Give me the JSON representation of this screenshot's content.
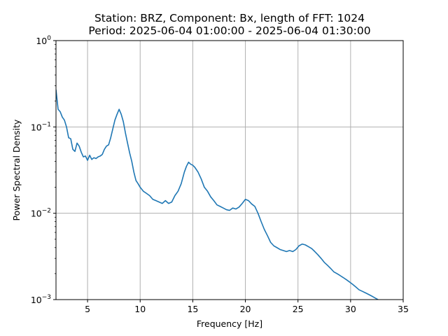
{
  "chart_data": {
    "type": "line",
    "title": "Station: BRZ, Component: Bx, length of FFT: 1024",
    "subtitle": "Period: 2025-06-04 01:00:00 - 2025-06-04 01:30:00",
    "xlabel": "Frequency [Hz]",
    "ylabel": "Power Spectral Density",
    "xlim": [
      2,
      35
    ],
    "ylim": [
      0.001,
      1
    ],
    "yscale": "log",
    "grid": true,
    "x_ticks": [
      5,
      10,
      15,
      20,
      25,
      30,
      35
    ],
    "x_tick_labels": [
      "5",
      "10",
      "15",
      "20",
      "25",
      "30",
      "35"
    ],
    "y_ticks": [
      {
        "value": 1,
        "base": "10",
        "exp": "0"
      },
      {
        "value": 0.1,
        "base": "10",
        "exp": "−1"
      },
      {
        "value": 0.01,
        "base": "10",
        "exp": "−2"
      },
      {
        "value": 0.001,
        "base": "10",
        "exp": "−3"
      }
    ],
    "series": [
      {
        "color": "#1f77b4",
        "x": [
          2.0,
          2.2,
          2.4,
          2.6,
          2.8,
          3.0,
          3.2,
          3.4,
          3.6,
          3.8,
          4.0,
          4.2,
          4.4,
          4.6,
          4.8,
          5.0,
          5.2,
          5.4,
          5.6,
          5.8,
          6.0,
          6.2,
          6.4,
          6.6,
          6.8,
          7.0,
          7.2,
          7.4,
          7.6,
          7.8,
          8.0,
          8.2,
          8.4,
          8.6,
          8.8,
          9.0,
          9.2,
          9.4,
          9.6,
          9.8,
          10.0,
          10.3,
          10.6,
          10.9,
          11.2,
          11.5,
          11.8,
          12.1,
          12.4,
          12.7,
          13.0,
          13.3,
          13.6,
          13.9,
          14.2,
          14.4,
          14.6,
          14.8,
          15.0,
          15.2,
          15.5,
          15.8,
          16.1,
          16.4,
          16.7,
          17.0,
          17.3,
          17.6,
          17.9,
          18.2,
          18.5,
          18.8,
          19.1,
          19.4,
          19.7,
          20.0,
          20.3,
          20.6,
          20.9,
          21.2,
          21.5,
          21.8,
          22.1,
          22.4,
          22.7,
          23.0,
          23.3,
          23.6,
          23.9,
          24.2,
          24.5,
          24.8,
          25.1,
          25.4,
          25.7,
          26.0,
          26.3,
          26.6,
          26.9,
          27.2,
          27.5,
          27.8,
          28.1,
          28.4,
          28.7,
          29.0,
          29.3,
          29.6,
          29.9,
          30.2,
          30.5,
          30.8,
          31.1,
          31.4,
          31.7,
          32.0,
          32.3,
          32.6,
          32.9,
          33.0
        ],
        "values": [
          0.27,
          0.16,
          0.15,
          0.13,
          0.12,
          0.1,
          0.075,
          0.073,
          0.055,
          0.052,
          0.065,
          0.06,
          0.051,
          0.045,
          0.046,
          0.041,
          0.047,
          0.042,
          0.044,
          0.043,
          0.045,
          0.046,
          0.048,
          0.055,
          0.06,
          0.062,
          0.075,
          0.095,
          0.12,
          0.14,
          0.16,
          0.14,
          0.115,
          0.085,
          0.065,
          0.05,
          0.04,
          0.03,
          0.024,
          0.022,
          0.02,
          0.018,
          0.017,
          0.016,
          0.0145,
          0.014,
          0.0135,
          0.013,
          0.014,
          0.013,
          0.0135,
          0.016,
          0.018,
          0.022,
          0.03,
          0.035,
          0.039,
          0.037,
          0.036,
          0.034,
          0.03,
          0.025,
          0.02,
          0.018,
          0.0155,
          0.014,
          0.0125,
          0.012,
          0.0115,
          0.011,
          0.0108,
          0.0115,
          0.0112,
          0.0118,
          0.013,
          0.0145,
          0.014,
          0.0128,
          0.012,
          0.01,
          0.008,
          0.0065,
          0.0055,
          0.0046,
          0.0042,
          0.004,
          0.0038,
          0.0037,
          0.0036,
          0.0037,
          0.0036,
          0.0038,
          0.0042,
          0.0044,
          0.0043,
          0.0041,
          0.0039,
          0.0036,
          0.0033,
          0.003,
          0.0027,
          0.0025,
          0.0023,
          0.0021,
          0.002,
          0.0019,
          0.0018,
          0.0017,
          0.0016,
          0.0015,
          0.0014,
          0.0013,
          0.00125,
          0.0012,
          0.00115,
          0.0011,
          0.00105,
          0.001,
          0.00095,
          0.0009
        ]
      }
    ]
  },
  "style": {
    "line_color": "#1f77b4",
    "grid_color": "#b0b0b0",
    "axes_color": "#000000",
    "background": "#ffffff"
  }
}
